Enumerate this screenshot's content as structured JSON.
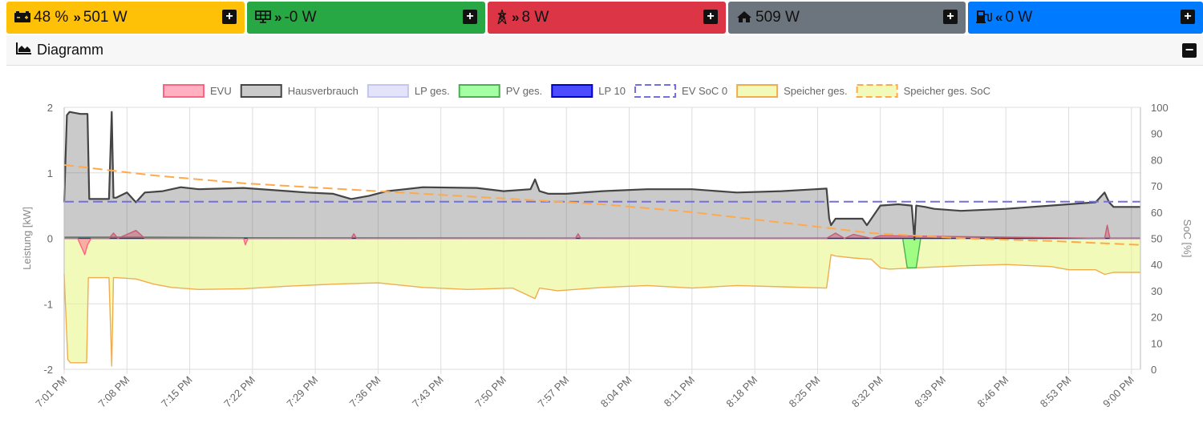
{
  "tiles": {
    "battery": {
      "icon": "battery-icon",
      "soc": "48 %",
      "arrow": "»",
      "power": "501 W",
      "color": "#ffc107"
    },
    "pv": {
      "icon": "solar-panel-icon",
      "arrow": "»",
      "power": "-0 W",
      "color": "#28a745"
    },
    "grid": {
      "icon": "power-tower-icon",
      "arrow": "»",
      "power": "8 W",
      "color": "#dc3545"
    },
    "house": {
      "icon": "home-icon",
      "power": "509 W",
      "color": "#6c757d"
    },
    "ev": {
      "icon": "charging-station-icon",
      "arrow": "«",
      "power": "0 W",
      "color": "#007bff"
    },
    "expand_label": "+"
  },
  "diagram": {
    "title": "Diagramm",
    "icon": "area-chart-icon",
    "collapse_label": "−"
  },
  "chart_data": {
    "type": "line",
    "legend_position": "top",
    "grid": true,
    "ylabel": "Leistung [kW]",
    "y2label": "SoC [%]",
    "ylim": [
      -2,
      2
    ],
    "y2lim": [
      0,
      100
    ],
    "yticks": [
      -2,
      -1,
      0,
      1,
      2
    ],
    "y2ticks": [
      0,
      10,
      20,
      30,
      40,
      50,
      60,
      70,
      80,
      90,
      100
    ],
    "xlim": [
      "19:01",
      "19:03"
    ],
    "xtick_minutes": [
      0,
      7,
      14,
      21,
      28,
      35,
      42,
      49,
      56,
      63,
      70,
      77,
      84,
      91,
      98,
      105,
      112,
      119
    ],
    "xtick_labels": [
      "7:01 PM",
      "7:08 PM",
      "7:15 PM",
      "7:22 PM",
      "7:29 PM",
      "7:36 PM",
      "7:43 PM",
      "7:50 PM",
      "7:57 PM",
      "8:04 PM",
      "8:11 PM",
      "8:18 PM",
      "8:25 PM",
      "8:32 PM",
      "8:39 PM",
      "8:46 PM",
      "8:53 PM",
      "9:00 PM"
    ],
    "x_minutes_end": 120,
    "series": [
      {
        "name": "EVU",
        "axis": "left",
        "color": "#ff6384",
        "fill": "rgba(255,99,132,0.5)",
        "x": [
          0,
          1.5,
          2.3,
          2.6,
          3,
          5,
          5.5,
          6,
          8,
          9,
          10,
          20,
          20.2,
          20.5,
          32,
          32.3,
          32.6,
          57,
          57.3,
          57.6,
          85,
          86,
          87,
          88,
          90,
          91,
          116,
          116.3,
          116.6,
          120
        ],
        "y": [
          0,
          0,
          -0.25,
          -0.1,
          0,
          0,
          0.08,
          0,
          0.12,
          0,
          0,
          0,
          -0.1,
          0,
          0,
          0.07,
          0,
          0,
          0.07,
          0,
          0,
          0.08,
          0,
          0.06,
          0,
          0.04,
          0,
          0.2,
          0,
          0
        ]
      },
      {
        "name": "Hausverbrauch",
        "axis": "left",
        "color": "#444444",
        "fill": "rgba(80,80,80,0.3)",
        "x": [
          0,
          0.3,
          0.6,
          1.8,
          2.6,
          2.8,
          3.0,
          5.0,
          5.3,
          5.5,
          5.8,
          7,
          8,
          9,
          11,
          13,
          15,
          20,
          25,
          27,
          30,
          32,
          34,
          36,
          38,
          40,
          46,
          49,
          52,
          52.5,
          53,
          54,
          56,
          60,
          65,
          70,
          75,
          80,
          85,
          85.3,
          85.5,
          86,
          87,
          89,
          89.5,
          91,
          93,
          94.5,
          94.8,
          95,
          96,
          97,
          100,
          105,
          110,
          115,
          116,
          116.5,
          117,
          120
        ],
        "y": [
          0.55,
          1.88,
          1.93,
          1.9,
          1.9,
          0.6,
          0.6,
          0.6,
          1.93,
          0.62,
          0.62,
          0.7,
          0.55,
          0.7,
          0.72,
          0.78,
          0.75,
          0.77,
          0.72,
          0.7,
          0.68,
          0.6,
          0.65,
          0.72,
          0.75,
          0.78,
          0.77,
          0.72,
          0.75,
          0.9,
          0.72,
          0.68,
          0.68,
          0.72,
          0.75,
          0.75,
          0.7,
          0.72,
          0.76,
          0.3,
          0.2,
          0.3,
          0.3,
          0.3,
          0.2,
          0.5,
          0.52,
          0.5,
          -0.02,
          0.5,
          0.48,
          0.45,
          0.42,
          0.45,
          0.5,
          0.55,
          0.7,
          0.55,
          0.48,
          0.48
        ]
      },
      {
        "name": "LP ges.",
        "axis": "left",
        "color": "#c5c5f2",
        "fill": "rgba(200,200,245,0.5)",
        "x": [
          0,
          120
        ],
        "y": [
          0,
          0
        ]
      },
      {
        "name": "PV ges.",
        "axis": "left",
        "color": "#4caf50",
        "fill": "rgba(76,255,76,0.5)",
        "x": [
          0,
          10,
          20,
          93.5,
          94,
          95,
          95.5,
          120
        ],
        "y": [
          0.02,
          0.02,
          0.01,
          0,
          -0.45,
          -0.45,
          0,
          0
        ]
      },
      {
        "name": "LP 10",
        "axis": "left",
        "color": "#0000cc",
        "fill": "rgba(0,0,255,0.7)",
        "x": [
          0,
          120
        ],
        "y": [
          0,
          0
        ]
      },
      {
        "name": "EV SoC 0",
        "axis": "right",
        "color": "#7070e0",
        "dashed": true,
        "x": [
          0,
          120
        ],
        "y": [
          64,
          64
        ]
      },
      {
        "name": "Speicher ges.",
        "axis": "left",
        "color": "#f0ad4e",
        "fill": "rgba(234,246,140,0.6)",
        "x": [
          0,
          0.4,
          0.7,
          1,
          2.5,
          2.7,
          3,
          5.0,
          5.3,
          5.5,
          5.8,
          8,
          10,
          12,
          15,
          20,
          25,
          30,
          35,
          40,
          45,
          50,
          52.5,
          53,
          55,
          60,
          65,
          70,
          75,
          80,
          85,
          85.5,
          86,
          88,
          90,
          91,
          92,
          100,
          105,
          110,
          112,
          115,
          116,
          117,
          120
        ],
        "y": [
          -0.55,
          -1.85,
          -1.9,
          -1.9,
          -1.9,
          -0.6,
          -0.6,
          -0.6,
          -1.95,
          -0.6,
          -0.6,
          -0.62,
          -0.7,
          -0.75,
          -0.78,
          -0.77,
          -0.73,
          -0.7,
          -0.68,
          -0.75,
          -0.78,
          -0.76,
          -0.92,
          -0.76,
          -0.8,
          -0.75,
          -0.72,
          -0.76,
          -0.72,
          -0.74,
          -0.76,
          -0.25,
          -0.27,
          -0.3,
          -0.32,
          -0.45,
          -0.47,
          -0.42,
          -0.4,
          -0.43,
          -0.48,
          -0.48,
          -0.55,
          -0.52,
          -0.52
        ]
      },
      {
        "name": "Speicher ges. SoC",
        "axis": "right",
        "color": "#ffa94d",
        "dashed": true,
        "x": [
          0,
          5,
          10,
          20,
          30,
          40,
          50,
          60,
          70,
          80,
          85,
          90,
          100,
          110,
          120
        ],
        "y": [
          78,
          76,
          74,
          71,
          69,
          67,
          65,
          63,
          60,
          56,
          54,
          52,
          50,
          49,
          47.5
        ]
      }
    ]
  }
}
